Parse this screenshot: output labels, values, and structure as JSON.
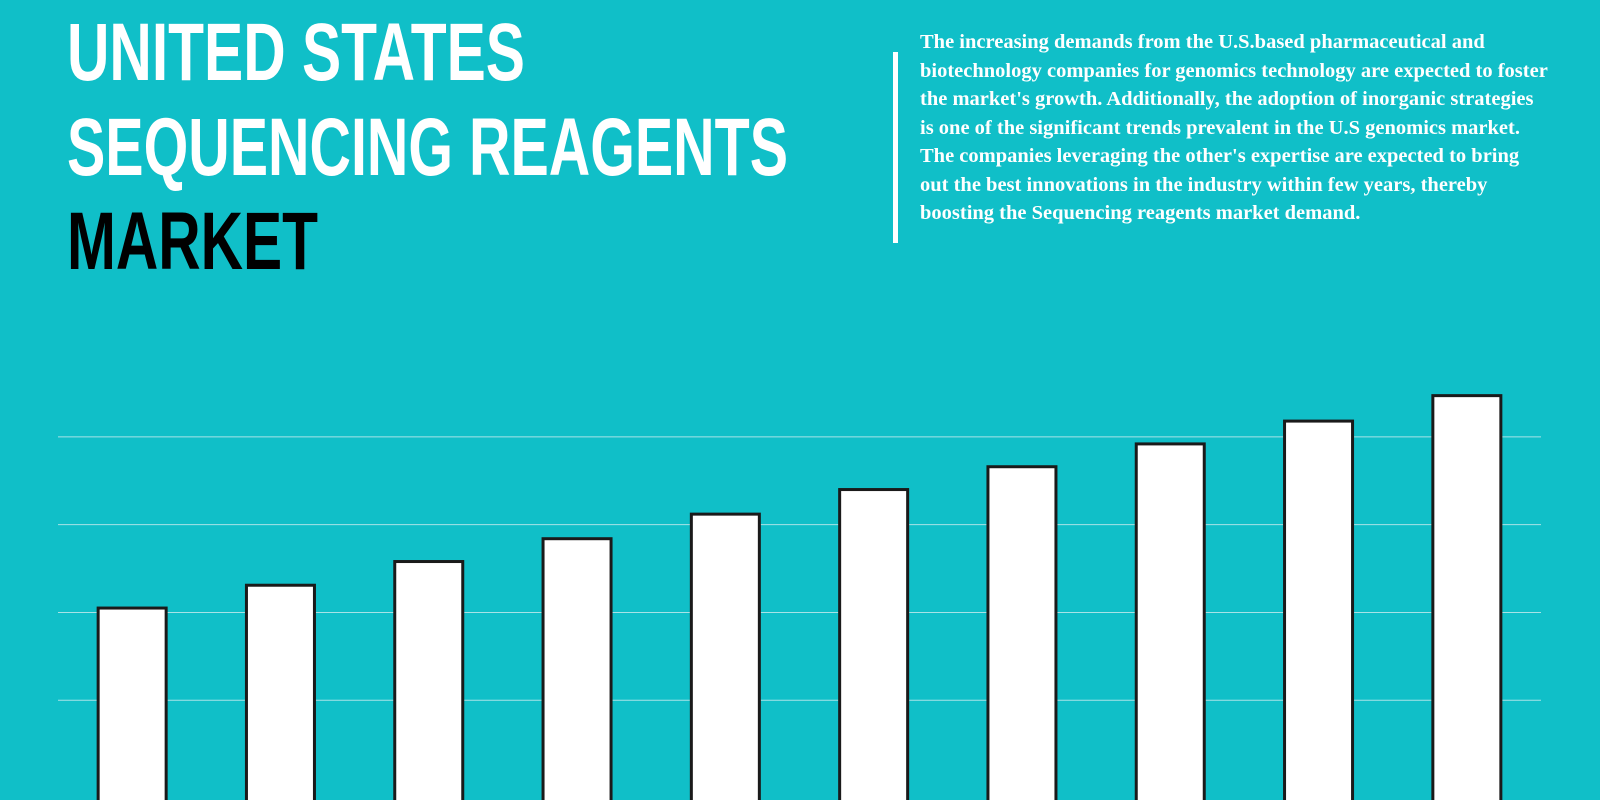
{
  "header": {
    "title_lines": [
      "UNITED STATES",
      "SEQUENCING REAGENTS",
      "MARKET"
    ],
    "description": "The increasing demands from the U.S.based pharmaceutical and biotechnology companies for genomics technology are expected to foster the market's growth. Additionally, the adoption of inorganic strategies is one of the significant trends prevalent in the U.S genomics market. The companies leveraging the other's expertise are expected to bring out the best innovations in the industry within few years, thereby boosting the Sequencing reagents market demand."
  },
  "chart_data": {
    "type": "bar",
    "categories": [
      null,
      null,
      null,
      null,
      null,
      null,
      null,
      null,
      null,
      null
    ],
    "values": [
      2.05,
      2.31,
      2.58,
      2.84,
      3.12,
      3.4,
      3.66,
      3.92,
      4.18,
      4.47
    ],
    "color": "#ffffff",
    "edge_color": "#1a1a1a",
    "ylim": [
      0,
      4.5
    ],
    "yticks": [
      1,
      2,
      3,
      4
    ],
    "grid": true
  }
}
